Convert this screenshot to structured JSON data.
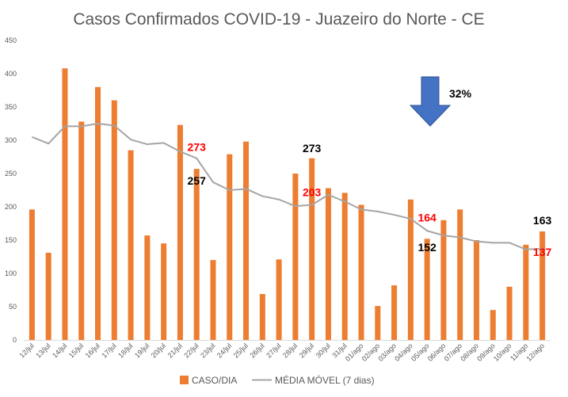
{
  "chart_data": {
    "type": "bar",
    "title": "Casos Confirmados COVID-19 - Juazeiro do Norte - CE",
    "xlabel": "",
    "ylabel": "",
    "ylim": [
      0,
      450
    ],
    "yticks": [
      0,
      50,
      100,
      150,
      200,
      250,
      300,
      350,
      400,
      450
    ],
    "grid": false,
    "legend_position": "bottom",
    "categories": [
      "12/jul",
      "13/jul",
      "14/jul",
      "15/jul",
      "16/jul",
      "17/jul",
      "18/jul",
      "19/jul",
      "20/jul",
      "21/jul",
      "22/jul",
      "23/jul",
      "24/jul",
      "25/jul",
      "26/jul",
      "27/jul",
      "28/jul",
      "29/jul",
      "30/jul",
      "31/jul",
      "01/ago",
      "02/ago",
      "03/ago",
      "04/ago",
      "05/ago",
      "06/ago",
      "07/ago",
      "08/ago",
      "09/ago",
      "10/ago",
      "11/ago",
      "12/ago"
    ],
    "series": [
      {
        "name": "CASO/DIA",
        "type": "bar",
        "color": "#ED7D31",
        "values": [
          196,
          131,
          408,
          328,
          380,
          360,
          285,
          157,
          145,
          323,
          257,
          120,
          279,
          298,
          69,
          121,
          250,
          273,
          228,
          221,
          203,
          51,
          82,
          211,
          152,
          180,
          196,
          150,
          45,
          80,
          143,
          163
        ]
      },
      {
        "name": "MÉDIA MÓVEL (7 dias)",
        "type": "line",
        "color": "#A5A5A5",
        "values": [
          305,
          295,
          321,
          321,
          325,
          322,
          301,
          294,
          296,
          283,
          273,
          237,
          225,
          227,
          216,
          211,
          201,
          203,
          218,
          208,
          196,
          193,
          188,
          182,
          164,
          157,
          154,
          148,
          146,
          146,
          136,
          137
        ]
      }
    ],
    "annotations": [
      {
        "text": "273",
        "color": "#FF0000",
        "x": "22/jul",
        "y": 290
      },
      {
        "text": "257",
        "color": "#000000",
        "x": "22/jul",
        "y": 239
      },
      {
        "text": "273",
        "color": "#000000",
        "x": "29/jul",
        "y": 288
      },
      {
        "text": "203",
        "color": "#FF0000",
        "x": "29/jul",
        "y": 222
      },
      {
        "text": "164",
        "color": "#FF0000",
        "x": "05/ago",
        "y": 184
      },
      {
        "text": "152",
        "color": "#000000",
        "x": "05/ago",
        "y": 139
      },
      {
        "text": "163",
        "color": "#000000",
        "x": "12/ago",
        "y": 180
      },
      {
        "text": "137",
        "color": "#FF0000",
        "x": "12/ago",
        "y": 132
      }
    ],
    "callout": {
      "text": "32%",
      "icon": "down-arrow-icon",
      "color": "#4472C4"
    }
  }
}
